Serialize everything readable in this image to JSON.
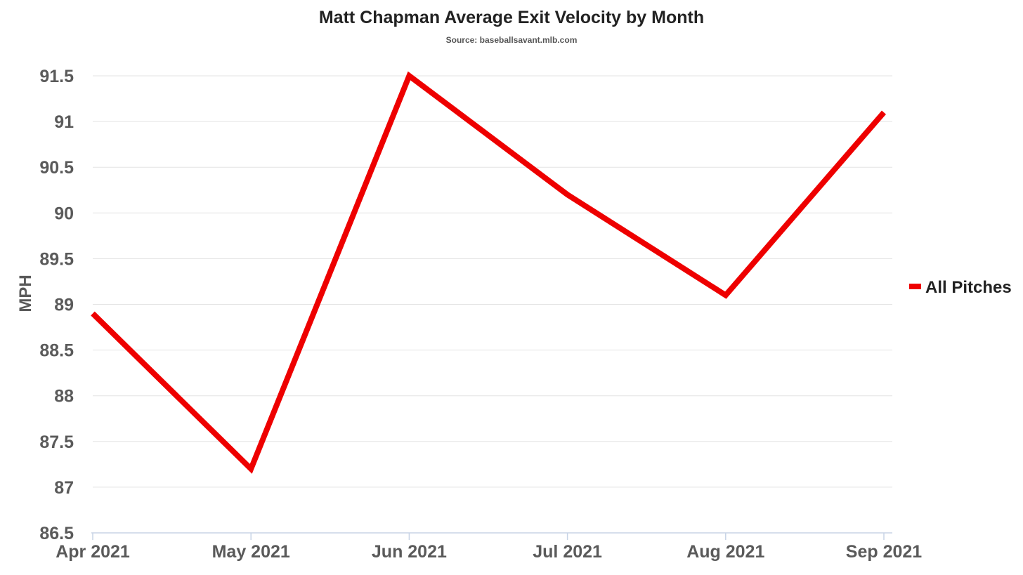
{
  "chart_data": {
    "type": "line",
    "title": "Matt Chapman Average Exit Velocity by Month",
    "subtitle": "Source: baseballsavant.mlb.com",
    "xlabel": "",
    "ylabel": "MPH",
    "categories": [
      "Apr 2021",
      "May 2021",
      "Jun 2021",
      "Jul 2021",
      "Aug 2021",
      "Sep 2021"
    ],
    "series": [
      {
        "name": "All Pitches",
        "color": "#ee0000",
        "values": [
          88.9,
          87.2,
          91.5,
          90.2,
          89.1,
          91.1
        ]
      }
    ],
    "ylim": [
      86.5,
      91.5
    ],
    "yticks": [
      "86.5",
      "87",
      "87.5",
      "88",
      "88.5",
      "89",
      "89.5",
      "90",
      "90.5",
      "91",
      "91.5"
    ],
    "grid": true,
    "legend_position": "right"
  }
}
